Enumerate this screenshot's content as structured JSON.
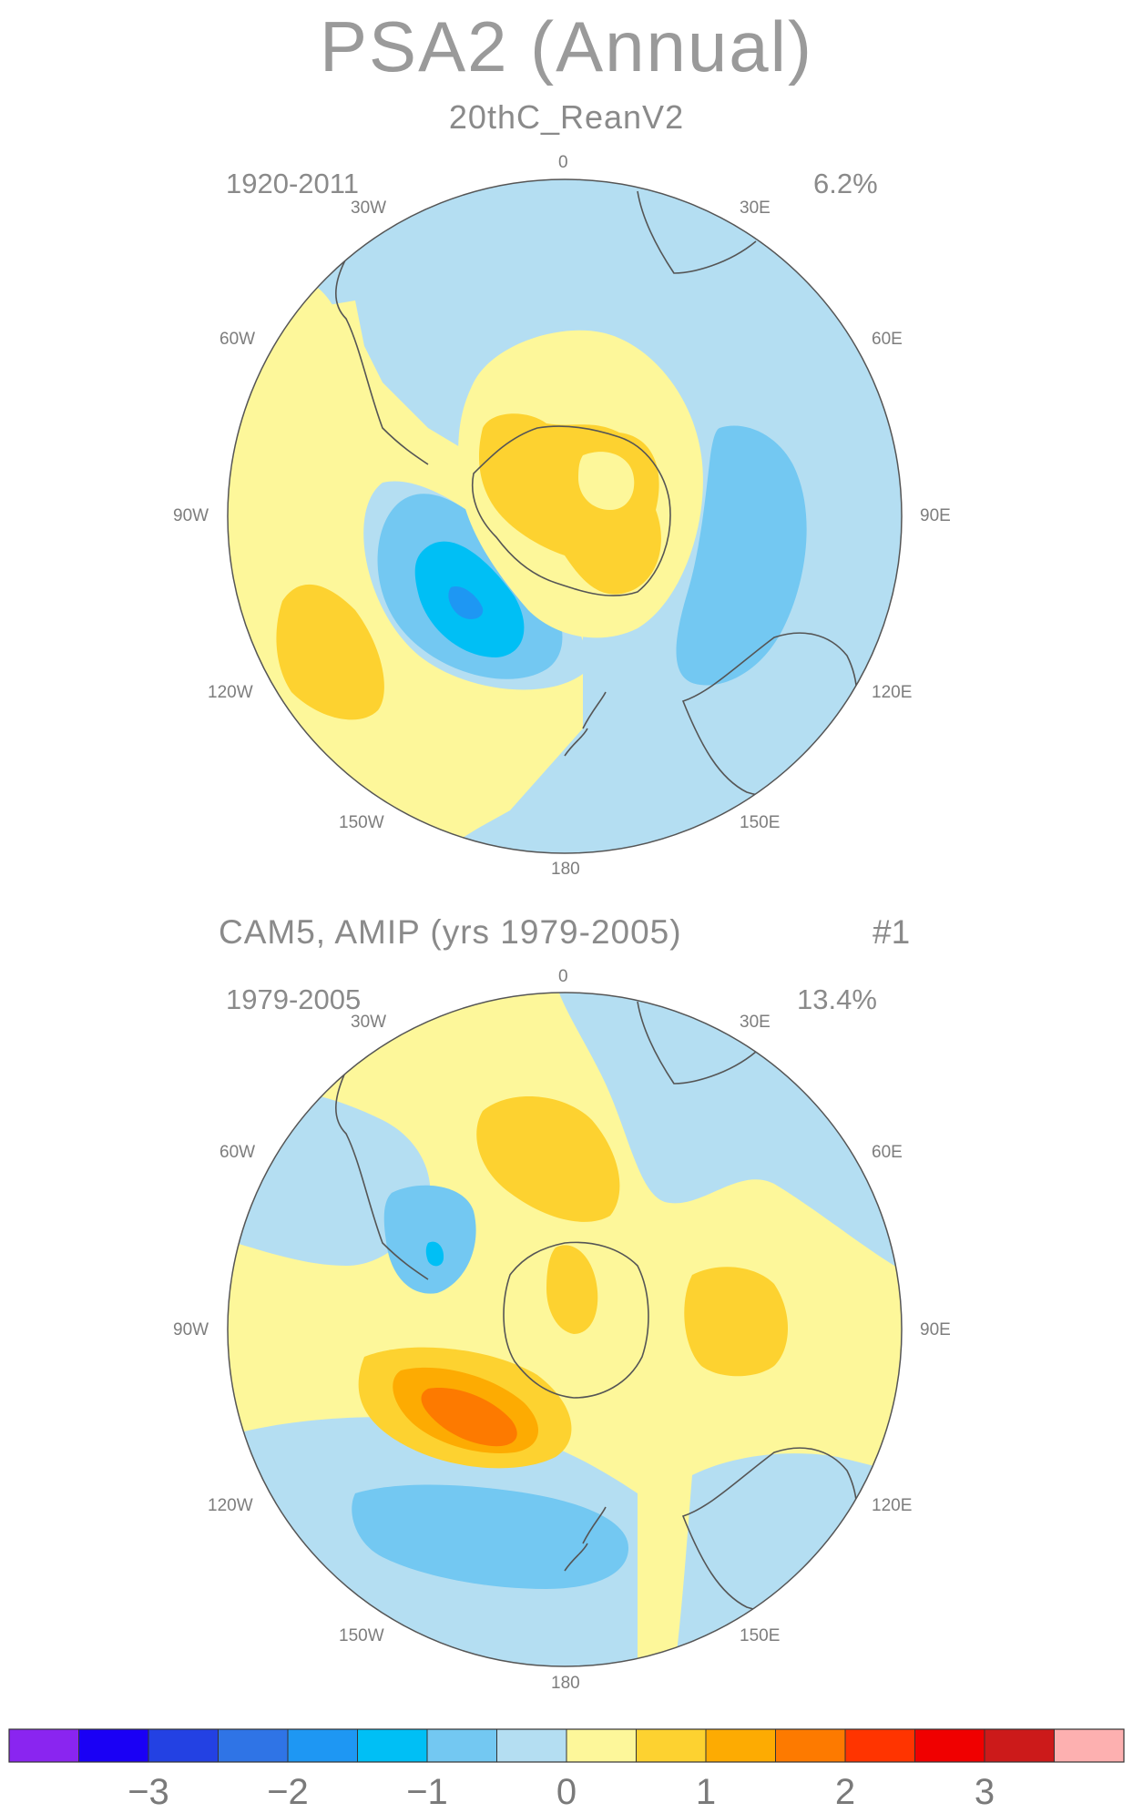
{
  "title": "PSA2 (Annual)",
  "panels": [
    {
      "subtitle": "20thC_ReanV2",
      "period": "1920-2011",
      "variance_explained": "6.2%",
      "longitude_labels": {
        "l0": "0",
        "l30e": "30E",
        "l60e": "60E",
        "l90e": "90E",
        "l120e": "120E",
        "l150e": "150E",
        "l180": "180",
        "l150w": "150W",
        "l120w": "120W",
        "l90w": "90W",
        "l60w": "60W",
        "l30w": "30W"
      }
    },
    {
      "subtitle": "CAM5, AMIP (yrs 1979-2005)",
      "run": "#1",
      "period": "1979-2005",
      "variance_explained": "13.4%",
      "longitude_labels": {
        "l0": "0",
        "l30e": "30E",
        "l60e": "60E",
        "l90e": "90E",
        "l120e": "120E",
        "l150e": "150E",
        "l180": "180",
        "l150w": "150W",
        "l120w": "120W",
        "l90w": "90W",
        "l60w": "60W",
        "l30w": "30W"
      }
    }
  ],
  "colorbar": {
    "colors": [
      "#8a25f0",
      "#1a00f5",
      "#2341e3",
      "#2f74e6",
      "#1e97f3",
      "#00bff5",
      "#73c8f2",
      "#b4def2",
      "#fdf79a",
      "#fdd230",
      "#fdab02",
      "#fd7a00",
      "#ff3400",
      "#f00000",
      "#cc1a1a",
      "#fdb0b0"
    ],
    "tick_labels": [
      "-3",
      "-2",
      "-1",
      "0",
      "1",
      "2",
      "3"
    ]
  }
}
